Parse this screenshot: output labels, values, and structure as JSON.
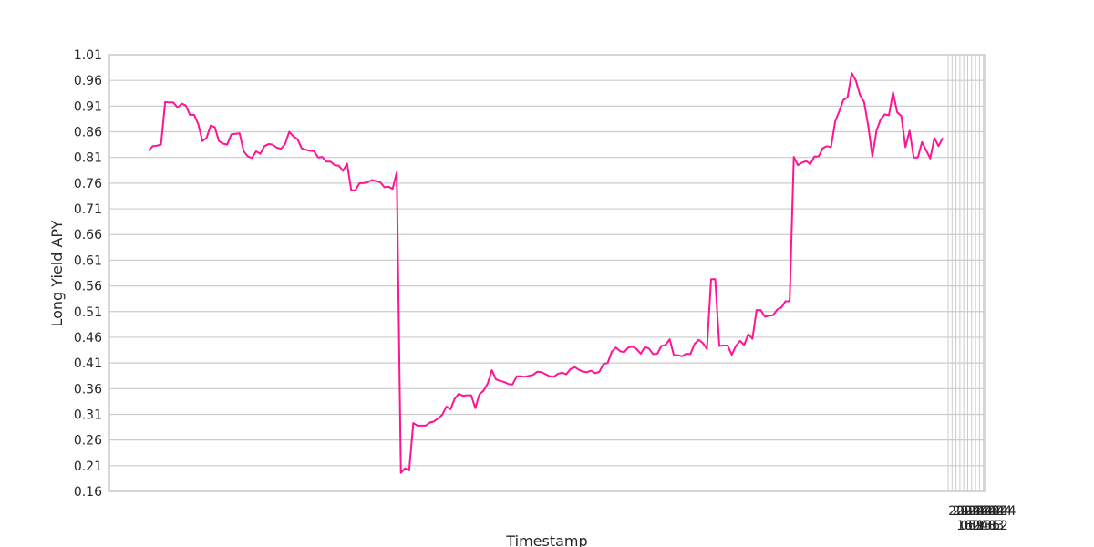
{
  "chart_data": {
    "type": "line",
    "title": "",
    "xlabel": "Timestamp",
    "ylabel": "Long Yield APY",
    "grid": true,
    "ylim": [
      0.16,
      1.01
    ],
    "yticks": [
      "0.16",
      "0.21",
      "0.26",
      "0.31",
      "0.36",
      "0.41",
      "0.46",
      "0.51",
      "0.56",
      "0.61",
      "0.66",
      "0.71",
      "0.76",
      "0.81",
      "0.86",
      "0.91",
      "0.96",
      "1.01"
    ],
    "xtick_labels_top": [
      "2024",
      "2024",
      "2024",
      "2024",
      "2024",
      "2024",
      "2024",
      "2024",
      "2024",
      "2024"
    ],
    "xtick_labels_bottom": [
      "16",
      "05",
      "02",
      "09",
      "04",
      "13",
      "08",
      "06",
      "03",
      "12"
    ],
    "line_color": "#ff1493",
    "series": [
      {
        "values": [
          0.823,
          0.832,
          0.833,
          0.835,
          0.918,
          0.917,
          0.917,
          0.907,
          0.915,
          0.911,
          0.893,
          0.893,
          0.875,
          0.842,
          0.848,
          0.872,
          0.869,
          0.842,
          0.837,
          0.835,
          0.855,
          0.856,
          0.857,
          0.822,
          0.812,
          0.809,
          0.822,
          0.817,
          0.832,
          0.836,
          0.835,
          0.829,
          0.827,
          0.836,
          0.86,
          0.851,
          0.846,
          0.828,
          0.825,
          0.823,
          0.822,
          0.81,
          0.811,
          0.802,
          0.802,
          0.795,
          0.794,
          0.784,
          0.798,
          0.746,
          0.746,
          0.76,
          0.76,
          0.762,
          0.766,
          0.764,
          0.762,
          0.752,
          0.753,
          0.749,
          0.781,
          0.196,
          0.205,
          0.201,
          0.293,
          0.288,
          0.288,
          0.288,
          0.294,
          0.296,
          0.302,
          0.309,
          0.325,
          0.32,
          0.34,
          0.35,
          0.346,
          0.347,
          0.347,
          0.322,
          0.349,
          0.356,
          0.37,
          0.396,
          0.378,
          0.375,
          0.373,
          0.369,
          0.368,
          0.384,
          0.384,
          0.383,
          0.385,
          0.387,
          0.393,
          0.392,
          0.388,
          0.384,
          0.383,
          0.389,
          0.391,
          0.388,
          0.398,
          0.402,
          0.397,
          0.393,
          0.392,
          0.395,
          0.39,
          0.393,
          0.408,
          0.41,
          0.432,
          0.44,
          0.433,
          0.431,
          0.44,
          0.442,
          0.437,
          0.428,
          0.441,
          0.438,
          0.427,
          0.428,
          0.443,
          0.445,
          0.456,
          0.425,
          0.425,
          0.423,
          0.428,
          0.427,
          0.447,
          0.455,
          0.449,
          0.437,
          0.573,
          0.573,
          0.443,
          0.444,
          0.444,
          0.426,
          0.443,
          0.453,
          0.445,
          0.466,
          0.457,
          0.513,
          0.513,
          0.5,
          0.502,
          0.503,
          0.514,
          0.518,
          0.53,
          0.53,
          0.811,
          0.795,
          0.8,
          0.803,
          0.797,
          0.812,
          0.812,
          0.828,
          0.832,
          0.83,
          0.88,
          0.9,
          0.922,
          0.927,
          0.974,
          0.96,
          0.932,
          0.918,
          0.872,
          0.812,
          0.862,
          0.884,
          0.894,
          0.892,
          0.937,
          0.898,
          0.891,
          0.83,
          0.862,
          0.81,
          0.81,
          0.84,
          0.824,
          0.808,
          0.848,
          0.832,
          0.848
        ]
      }
    ]
  }
}
